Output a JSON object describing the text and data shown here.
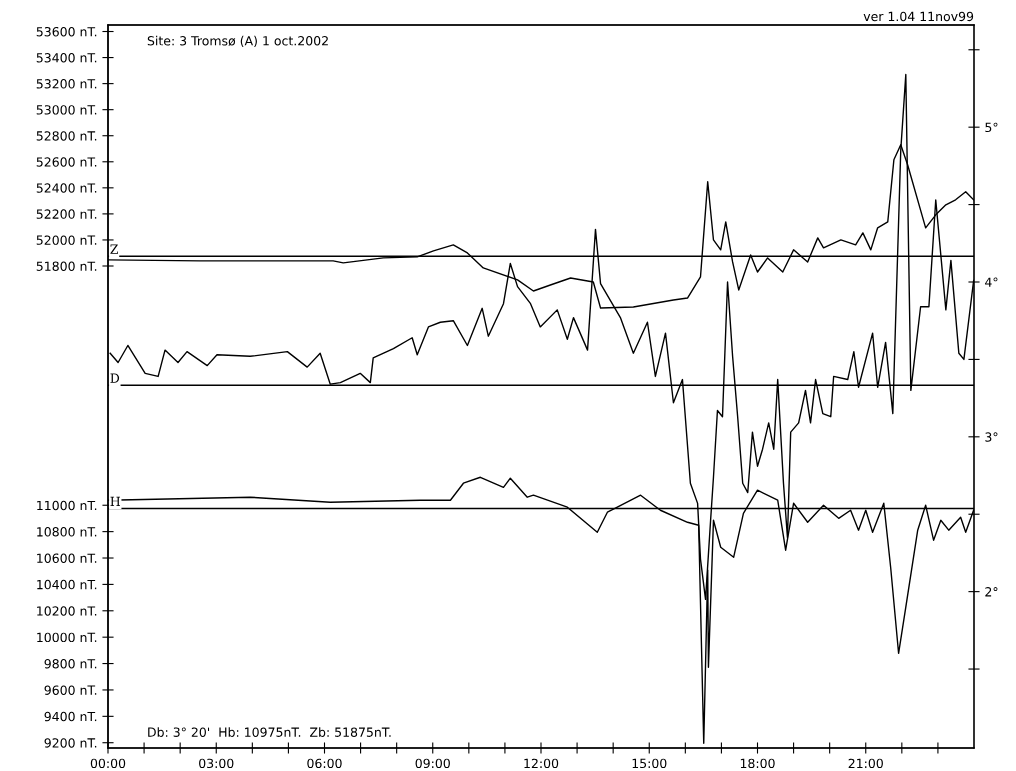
{
  "chart_data": {
    "type": "line",
    "title": "Site: 3 Tromsø (A) 1 oct.2002",
    "annotations": [
      "ver 1.04 11nov99",
      "Db: 3° 20'  Hb: 10975nT.  Zb: 51875nT."
    ],
    "grid": false,
    "xlim": [
      0,
      24
    ],
    "xticks": [
      {
        "value": 0,
        "label": "00:00"
      },
      {
        "value": 1,
        "label": null
      },
      {
        "value": 2,
        "label": null
      },
      {
        "value": 3,
        "label": "03:00"
      },
      {
        "value": 4,
        "label": null
      },
      {
        "value": 5,
        "label": null
      },
      {
        "value": 6,
        "label": "06:00"
      },
      {
        "value": 7,
        "label": null
      },
      {
        "value": 8,
        "label": null
      },
      {
        "value": 9,
        "label": "09:00"
      },
      {
        "value": 10,
        "label": null
      },
      {
        "value": 11,
        "label": null
      },
      {
        "value": 12,
        "label": "12:00"
      },
      {
        "value": 13,
        "label": null
      },
      {
        "value": 14,
        "label": null
      },
      {
        "value": 15,
        "label": "15:00"
      },
      {
        "value": 16,
        "label": null
      },
      {
        "value": 17,
        "label": null
      },
      {
        "value": 18,
        "label": "18:00"
      },
      {
        "value": 19,
        "label": null
      },
      {
        "value": 20,
        "label": null
      },
      {
        "value": 21,
        "label": "21:00"
      },
      {
        "value": 22,
        "label": null
      },
      {
        "value": 23,
        "label": null
      }
    ],
    "ylim": [
      48100,
      53650
    ],
    "yticks": [
      {
        "value": 51800,
        "label": "51800 nT."
      },
      {
        "value": 52000,
        "label": "52000 nT."
      },
      {
        "value": 52200,
        "label": "52200 nT."
      },
      {
        "value": 52400,
        "label": "52400 nT."
      },
      {
        "value": 52600,
        "label": "52600 nT."
      },
      {
        "value": 52800,
        "label": "52800 nT."
      },
      {
        "value": 53000,
        "label": "53000 nT."
      },
      {
        "value": 53200,
        "label": "53200 nT."
      },
      {
        "value": 53400,
        "label": "53400 nT."
      },
      {
        "value": 53600,
        "label": "53600 nT."
      }
    ],
    "y3lim": [
      9160,
      14640
    ],
    "y3ticks": [
      {
        "value": 9200,
        "label": "9200 nT."
      },
      {
        "value": 9400,
        "label": "9400 nT."
      },
      {
        "value": 9600,
        "label": "9600 nT."
      },
      {
        "value": 9800,
        "label": "9800 nT."
      },
      {
        "value": 10000,
        "label": "10000 nT."
      },
      {
        "value": 10200,
        "label": "10200 nT."
      },
      {
        "value": 10400,
        "label": "10400 nT."
      },
      {
        "value": 10600,
        "label": "10600 nT."
      },
      {
        "value": 10800,
        "label": "10800 nT."
      },
      {
        "value": 11000,
        "label": "11000 nT."
      }
    ],
    "y2lim": [
      0.99,
      5.66
    ],
    "y2ticks": [
      {
        "value": 1.5,
        "label": null
      },
      {
        "value": 2,
        "label": "2°"
      },
      {
        "value": 2.5,
        "label": null
      },
      {
        "value": 3,
        "label": "3°"
      },
      {
        "value": 3.5,
        "label": null
      },
      {
        "value": 4,
        "label": "4°"
      },
      {
        "value": 4.5,
        "label": null
      },
      {
        "value": 5,
        "label": "5°"
      },
      {
        "value": 5.5,
        "label": null
      }
    ],
    "ref_lines": [
      {
        "axis": "y",
        "value": 51875,
        "label": "Z",
        "color": "#000000"
      },
      {
        "axis": "y2",
        "value": 3.333,
        "label": "D",
        "color": "#000000"
      },
      {
        "axis": "y3",
        "value": 10975,
        "label": "H",
        "color": "#000000"
      }
    ],
    "series": [
      {
        "axis": "y",
        "color": "#000000",
        "x": [
          0,
          2.55,
          6.24,
          6.52,
          7.63,
          8.57,
          9.02,
          9.57,
          9.96,
          10.4,
          11.35,
          11.79,
          12.26,
          12.82,
          13.45,
          13.65,
          14.56,
          15.67,
          16.06,
          16.42,
          16.62,
          16.78,
          16.98,
          17.12,
          17.31,
          17.48,
          17.81,
          18.0,
          18.28,
          18.7,
          19.0,
          19.39,
          19.67,
          19.83,
          20.31,
          20.72,
          20.92,
          21.14,
          21.33,
          21.61,
          21.78,
          21.97,
          22.16,
          22.66,
          22.94,
          23.22,
          23.49,
          23.77,
          23.99
        ],
        "values": [
          51847,
          51839,
          51839,
          51824,
          51862,
          51870,
          51916,
          51962,
          51900,
          51785,
          51693,
          51608,
          51654,
          51708,
          51677,
          51478,
          51485,
          51539,
          51554,
          51716,
          52447,
          52000,
          51924,
          52139,
          51831,
          51616,
          51885,
          51754,
          51862,
          51754,
          51924,
          51831,
          52016,
          51939,
          52000,
          51962,
          52054,
          51924,
          52093,
          52139,
          52616,
          52731,
          52577,
          52093,
          52193,
          52270,
          52308,
          52370,
          52308
        ]
      },
      {
        "axis": "y2",
        "color": "#000000",
        "x": [
          0.06,
          0.28,
          0.55,
          1.03,
          1.39,
          1.58,
          1.94,
          2.19,
          2.75,
          3.02,
          3.94,
          4.97,
          5.52,
          5.88,
          6.16,
          6.44,
          6.99,
          7.27,
          7.35,
          7.91,
          8.43,
          8.57,
          8.88,
          9.21,
          9.57,
          9.96,
          10.37,
          10.54,
          10.96,
          11.15,
          11.35,
          11.71,
          11.98,
          12.45,
          12.73,
          12.9,
          13.29,
          13.51,
          13.65,
          14.2,
          14.56,
          14.95,
          15.17,
          15.45,
          15.67,
          15.92,
          16.14,
          16.34,
          16.42,
          16.56,
          16.7,
          16.78,
          16.89,
          17.03,
          17.17,
          17.31,
          17.45,
          17.59,
          17.73,
          17.86,
          18.0,
          18.14,
          18.31,
          18.45,
          18.56,
          18.72,
          18.83,
          18.92,
          19.14,
          19.33,
          19.47,
          19.61,
          19.81,
          20.03,
          20.11,
          20.5,
          20.67,
          20.8,
          21.19,
          21.33,
          21.55,
          21.75,
          21.97,
          22.11,
          22.25,
          22.52,
          22.75,
          22.94,
          23.22,
          23.36,
          23.58,
          23.72,
          23.99
        ],
        "values": [
          3.54,
          3.48,
          3.59,
          3.41,
          3.39,
          3.56,
          3.48,
          3.55,
          3.46,
          3.53,
          3.52,
          3.55,
          3.45,
          3.54,
          3.34,
          3.35,
          3.41,
          3.35,
          3.51,
          3.57,
          3.64,
          3.53,
          3.71,
          3.74,
          3.75,
          3.59,
          3.83,
          3.65,
          3.86,
          4.12,
          3.97,
          3.86,
          3.71,
          3.82,
          3.63,
          3.77,
          3.56,
          4.34,
          3.99,
          3.77,
          3.54,
          3.74,
          3.39,
          3.67,
          3.22,
          3.37,
          2.7,
          2.57,
          2.21,
          1.95,
          2.46,
          2.74,
          3.17,
          3.13,
          4.0,
          3.52,
          3.13,
          2.7,
          2.64,
          3.03,
          2.81,
          2.92,
          3.09,
          2.92,
          3.37,
          2.7,
          2.35,
          3.03,
          3.09,
          3.3,
          3.09,
          3.37,
          3.15,
          3.13,
          3.39,
          3.37,
          3.55,
          3.32,
          3.67,
          3.32,
          3.61,
          3.15,
          4.85,
          5.34,
          3.3,
          3.84,
          3.84,
          4.53,
          3.82,
          4.14,
          3.54,
          3.5,
          4.01
        ]
      },
      {
        "axis": "y3",
        "color": "#000000",
        "x": [
          0,
          3.94,
          6.16,
          8.65,
          9.49,
          9.85,
          10.32,
          10.96,
          11.15,
          11.62,
          11.79,
          12.73,
          13.56,
          13.84,
          14.76,
          15.31,
          16.06,
          16.37,
          16.51,
          16.62,
          16.64,
          16.78,
          16.98,
          17.34,
          17.61,
          18.0,
          18.56,
          18.78,
          19.0,
          19.39,
          19.83,
          20.25,
          20.58,
          20.8,
          21.0,
          21.19,
          21.5,
          21.69,
          21.91,
          22.11,
          22.44,
          22.66,
          22.88,
          23.08,
          23.3,
          23.63,
          23.77,
          23.99
        ],
        "values": [
          11038,
          11061,
          11023,
          11038,
          11038,
          11167,
          11212,
          11136,
          11205,
          11061,
          11076,
          10985,
          10795,
          10947,
          11076,
          10962,
          10871,
          10848,
          9196,
          10507,
          9772,
          10886,
          10682,
          10606,
          10939,
          11114,
          11038,
          10659,
          11015,
          10871,
          11000,
          10901,
          10962,
          10811,
          10962,
          10795,
          11015,
          10530,
          9878,
          10227,
          10811,
          11000,
          10735,
          10886,
          10811,
          10909,
          10795,
          10962
        ]
      }
    ]
  }
}
